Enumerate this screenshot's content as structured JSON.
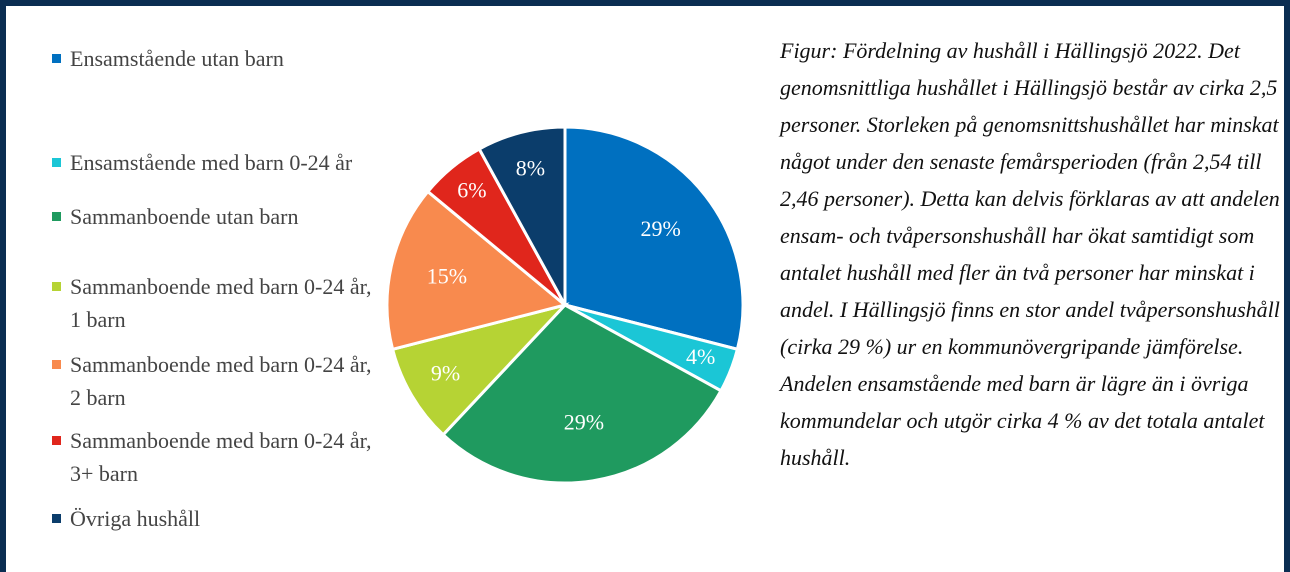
{
  "chart_data": {
    "type": "pie",
    "categories": [
      "Ensamstående utan barn",
      "Ensamstående med barn 0-24 år",
      "Sammanboende utan barn",
      "Sammanboende med barn 0-24 år, 1 barn",
      "Sammanboende med barn 0-24 år, 2 barn",
      "Sammanboende med barn 0-24 år, 3+ barn",
      "Övriga hushåll"
    ],
    "values": [
      29,
      4,
      29,
      9,
      15,
      6,
      8
    ],
    "value_labels": [
      "29%",
      "4%",
      "29%",
      "9%",
      "15%",
      "6%",
      "8%"
    ],
    "colors": [
      "#0070c0",
      "#1bc6d6",
      "#1f9a5f",
      "#b6d334",
      "#f88a4e",
      "#e0261c",
      "#0b3d6b"
    ],
    "legend": "left",
    "annotation": "Figur: Fördelning av hushåll i Hällingsjö 2022. Det genomsnittliga hushållet i Hällingsjö består av cirka 2,5 personer. Storleken på genomsnittshushållet har minskat något under den senaste femårsperioden (från 2,54 till 2,46 personer). Detta kan delvis förklaras av att andelen ensam- och tvåpersonshushåll har ökat samtidigt som antalet hushåll med fler än två personer har minskat i andel. I Hällingsjö finns en stor andel tvåpersonshushåll (cirka 29 %) ur en kommunövergripande jämförelse. Andelen ensamstående med barn är lägre än i övriga kommundelar och utgör cirka 4 % av det totala antalet hushåll."
  }
}
